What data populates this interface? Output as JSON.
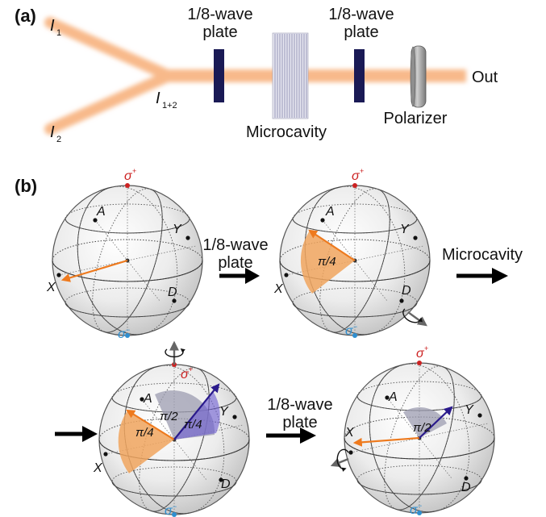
{
  "panel_a": {
    "label": "(a)",
    "input1_main": "I",
    "input1_sub": "1",
    "input2_main": "I",
    "input2_sub": "2",
    "combined_main": "I",
    "combined_sub": "1+2",
    "waveplate1_line1": "1/8-wave",
    "waveplate1_line2": "plate",
    "waveplate2_line1": "1/8-wave",
    "waveplate2_line2": "plate",
    "microcavity": "Microcavity",
    "polarizer": "Polarizer",
    "out": "Out"
  },
  "panel_b": {
    "label": "(b)",
    "axis_sigma_plus": "σ",
    "axis_sigma_plus_sup": "+",
    "axis_sigma_minus": "σ",
    "axis_sigma_minus_sup": "−",
    "axis_A": "A",
    "axis_Y": "Y",
    "axis_X": "X",
    "axis_D": "D",
    "step1_line1": "1/8-wave",
    "step1_line2": "plate",
    "step2": "Microcavity",
    "step3_line1": "1/8-wave",
    "step3_line2": "plate",
    "angle_pi4": "π/4",
    "angle_pi2": "π/2"
  },
  "colors": {
    "beam": "#f8b98a",
    "orange_vector": "#ee7a1e",
    "blue_vector": "#2a1a8c",
    "sigma_plus": "#cc2222",
    "sigma_minus": "#2f8fd0",
    "waveplate": "#1a1a55"
  },
  "icons": [
    "rotation-arrow-icon",
    "right-arrow-icon"
  ]
}
